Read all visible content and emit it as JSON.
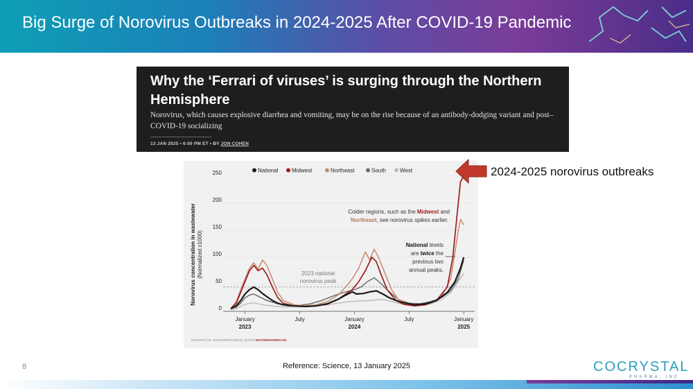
{
  "slide": {
    "title": "Big Surge of Norovirus Outbreaks in 2024-2025 After COVID-19 Pandemic",
    "page_number": "8",
    "reference": "Reference: Science, 13 January 2025",
    "callout": "2024-2025 norovirus outbreaks",
    "logo_main": "COCRYSTAL",
    "logo_sub": "PHARMA, INC"
  },
  "article": {
    "headline": "Why the ‘Ferrari of viruses’ is surging through the Northern Hemisphere",
    "subhead": "Norovirus, which causes explosive diarrhea and vomiting, may be on the rise because of an antibody-dodging variant and post–COVID-19 socializing",
    "date": "13 JAN 2025",
    "time": "6:00 PM ET",
    "by": "BY",
    "author": "JON COHEN"
  },
  "colors": {
    "National": "#1a1a1a",
    "Midwest": "#9b1c1c",
    "Northeast": "#c58a6f",
    "South": "#6e6e6e",
    "West": "#bdbdbd",
    "accent_red": "#c0392b"
  },
  "chart_data": {
    "type": "line",
    "ylabel": "Norovirus concentration in wastewater",
    "ylabel_sub": "(Normalized x1000)",
    "ylim": [
      0,
      250
    ],
    "yticks": [
      "0",
      "50",
      "100",
      "150",
      "200",
      "250"
    ],
    "xticks": [
      {
        "t": 2023.0,
        "month": "January",
        "year": "2023"
      },
      {
        "t": 2023.5,
        "month": "July",
        "year": ""
      },
      {
        "t": 2024.0,
        "month": "January",
        "year": "2024"
      },
      {
        "t": 2024.5,
        "month": "July",
        "year": ""
      },
      {
        "t": 2025.0,
        "month": "January",
        "year": "2025"
      }
    ],
    "reference_line": {
      "value": 45,
      "label_line1": "2023 national",
      "label_line2": "norovirus peak"
    },
    "legend": [
      "National",
      "Midwest",
      "Northeast",
      "South",
      "West"
    ],
    "annotation_colder": {
      "pre": "Colder regions, such as the ",
      "midwest": "Midwest",
      "and": " and",
      "northeast": "Northeast",
      "post": ", see norovirus spikes earlier."
    },
    "annotation_national": {
      "national": "National",
      "levels": " levels",
      "are": "are ",
      "twice": "twice",
      "the": " the",
      "line3": "previous two",
      "line4": "annual peaks."
    },
    "source_prefix": "(GRAPHIC) M. HERSHER/SCIENCE; (DATA) ",
    "source_name": "WASTEWATERSCAN",
    "series": [
      {
        "name": "National",
        "points": [
          [
            2022.87,
            5
          ],
          [
            2022.92,
            10
          ],
          [
            2022.96,
            20
          ],
          [
            2023.0,
            32
          ],
          [
            2023.04,
            40
          ],
          [
            2023.08,
            45
          ],
          [
            2023.12,
            40
          ],
          [
            2023.16,
            33
          ],
          [
            2023.2,
            27
          ],
          [
            2023.25,
            20
          ],
          [
            2023.3,
            15
          ],
          [
            2023.35,
            12
          ],
          [
            2023.45,
            10
          ],
          [
            2023.55,
            9
          ],
          [
            2023.65,
            10
          ],
          [
            2023.75,
            14
          ],
          [
            2023.85,
            22
          ],
          [
            2023.92,
            30
          ],
          [
            2023.98,
            36
          ],
          [
            2024.02,
            32
          ],
          [
            2024.08,
            33
          ],
          [
            2024.14,
            36
          ],
          [
            2024.2,
            38
          ],
          [
            2024.26,
            32
          ],
          [
            2024.32,
            25
          ],
          [
            2024.38,
            20
          ],
          [
            2024.45,
            16
          ],
          [
            2024.55,
            12
          ],
          [
            2024.65,
            14
          ],
          [
            2024.75,
            20
          ],
          [
            2024.85,
            35
          ],
          [
            2024.92,
            55
          ],
          [
            2024.97,
            80
          ],
          [
            2025.0,
            100
          ]
        ]
      },
      {
        "name": "Midwest",
        "points": [
          [
            2022.87,
            5
          ],
          [
            2022.92,
            15
          ],
          [
            2022.96,
            35
          ],
          [
            2023.0,
            55
          ],
          [
            2023.04,
            75
          ],
          [
            2023.08,
            85
          ],
          [
            2023.12,
            75
          ],
          [
            2023.16,
            80
          ],
          [
            2023.2,
            68
          ],
          [
            2023.25,
            45
          ],
          [
            2023.3,
            25
          ],
          [
            2023.35,
            15
          ],
          [
            2023.45,
            10
          ],
          [
            2023.55,
            9
          ],
          [
            2023.65,
            10
          ],
          [
            2023.75,
            13
          ],
          [
            2023.85,
            22
          ],
          [
            2023.92,
            32
          ],
          [
            2023.98,
            40
          ],
          [
            2024.04,
            55
          ],
          [
            2024.1,
            75
          ],
          [
            2024.16,
            100
          ],
          [
            2024.2,
            92
          ],
          [
            2024.24,
            70
          ],
          [
            2024.3,
            40
          ],
          [
            2024.38,
            20
          ],
          [
            2024.45,
            13
          ],
          [
            2024.55,
            10
          ],
          [
            2024.65,
            12
          ],
          [
            2024.75,
            20
          ],
          [
            2024.85,
            45
          ],
          [
            2024.9,
            100
          ],
          [
            2024.94,
            180
          ],
          [
            2024.97,
            240
          ],
          [
            2025.0,
            250
          ]
        ]
      },
      {
        "name": "Northeast",
        "points": [
          [
            2022.87,
            5
          ],
          [
            2022.92,
            18
          ],
          [
            2022.96,
            40
          ],
          [
            2023.0,
            60
          ],
          [
            2023.04,
            80
          ],
          [
            2023.08,
            90
          ],
          [
            2023.12,
            78
          ],
          [
            2023.16,
            95
          ],
          [
            2023.2,
            85
          ],
          [
            2023.25,
            60
          ],
          [
            2023.3,
            35
          ],
          [
            2023.35,
            20
          ],
          [
            2023.45,
            12
          ],
          [
            2023.55,
            10
          ],
          [
            2023.65,
            12
          ],
          [
            2023.75,
            18
          ],
          [
            2023.85,
            30
          ],
          [
            2023.92,
            45
          ],
          [
            2023.98,
            60
          ],
          [
            2024.04,
            80
          ],
          [
            2024.1,
            110
          ],
          [
            2024.14,
            95
          ],
          [
            2024.18,
            115
          ],
          [
            2024.22,
            100
          ],
          [
            2024.28,
            70
          ],
          [
            2024.34,
            40
          ],
          [
            2024.4,
            22
          ],
          [
            2024.5,
            14
          ],
          [
            2024.6,
            12
          ],
          [
            2024.7,
            16
          ],
          [
            2024.8,
            28
          ],
          [
            2024.88,
            60
          ],
          [
            2024.92,
            110
          ],
          [
            2024.95,
            150
          ],
          [
            2024.97,
            170
          ],
          [
            2025.0,
            160
          ]
        ]
      },
      {
        "name": "South",
        "points": [
          [
            2022.87,
            5
          ],
          [
            2022.92,
            8
          ],
          [
            2022.96,
            15
          ],
          [
            2023.0,
            25
          ],
          [
            2023.04,
            30
          ],
          [
            2023.08,
            32
          ],
          [
            2023.12,
            28
          ],
          [
            2023.2,
            20
          ],
          [
            2023.3,
            14
          ],
          [
            2023.4,
            10
          ],
          [
            2023.5,
            11
          ],
          [
            2023.6,
            14
          ],
          [
            2023.7,
            20
          ],
          [
            2023.8,
            28
          ],
          [
            2023.9,
            35
          ],
          [
            2024.0,
            40
          ],
          [
            2024.06,
            45
          ],
          [
            2024.12,
            55
          ],
          [
            2024.18,
            62
          ],
          [
            2024.24,
            52
          ],
          [
            2024.3,
            40
          ],
          [
            2024.4,
            22
          ],
          [
            2024.5,
            15
          ],
          [
            2024.6,
            14
          ],
          [
            2024.7,
            18
          ],
          [
            2024.8,
            26
          ],
          [
            2024.88,
            38
          ],
          [
            2024.95,
            60
          ],
          [
            2025.0,
            95
          ]
        ]
      },
      {
        "name": "West",
        "points": [
          [
            2022.87,
            3
          ],
          [
            2022.92,
            5
          ],
          [
            2022.96,
            9
          ],
          [
            2023.0,
            13
          ],
          [
            2023.05,
            15
          ],
          [
            2023.1,
            15
          ],
          [
            2023.16,
            12
          ],
          [
            2023.25,
            10
          ],
          [
            2023.35,
            8
          ],
          [
            2023.45,
            8
          ],
          [
            2023.55,
            9
          ],
          [
            2023.65,
            10
          ],
          [
            2023.75,
            12
          ],
          [
            2023.85,
            15
          ],
          [
            2023.95,
            18
          ],
          [
            2024.05,
            19
          ],
          [
            2024.15,
            20
          ],
          [
            2024.25,
            22
          ],
          [
            2024.3,
            20
          ],
          [
            2024.4,
            15
          ],
          [
            2024.5,
            12
          ],
          [
            2024.6,
            11
          ],
          [
            2024.7,
            14
          ],
          [
            2024.8,
            22
          ],
          [
            2024.88,
            35
          ],
          [
            2024.95,
            55
          ],
          [
            2025.0,
            70
          ]
        ]
      }
    ]
  }
}
